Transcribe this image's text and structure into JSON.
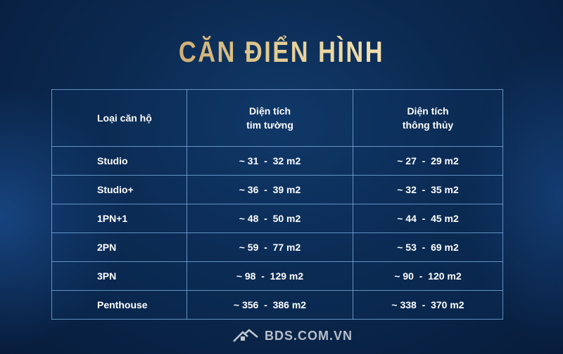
{
  "title": "CĂN ĐIỂN HÌNH",
  "table": {
    "headers": [
      "Loại căn hộ",
      "Diện tích\ntim tường",
      "Diện tích\nthông thủy"
    ],
    "header_lines": [
      [
        "Loại căn hộ"
      ],
      [
        "Diện tích",
        "tim tường"
      ],
      [
        "Diện tích",
        "thông thủy"
      ]
    ],
    "rows": [
      [
        "Studio",
        "~ 31  -  32 m2",
        "~ 27  -  29 m2"
      ],
      [
        "Studio+",
        "~ 36  -  39 m2",
        "~ 32  -  35 m2"
      ],
      [
        "1PN+1",
        "~ 48  -  50 m2",
        "~ 44  -  45 m2"
      ],
      [
        "2PN",
        "~ 59  -  77 m2",
        "~ 53  -  69 m2"
      ],
      [
        "3PN",
        "~ 98  -  129 m2",
        "~ 90  -  120 m2"
      ],
      [
        "Penthouse",
        "~ 356  -  386 m2",
        "~ 338  -  370 m2"
      ]
    ]
  },
  "watermark": "BDS.COM.VN",
  "colors": {
    "title_gold": "#d9bc7e",
    "background": "#0b2950",
    "grid": "#8cbef0"
  }
}
